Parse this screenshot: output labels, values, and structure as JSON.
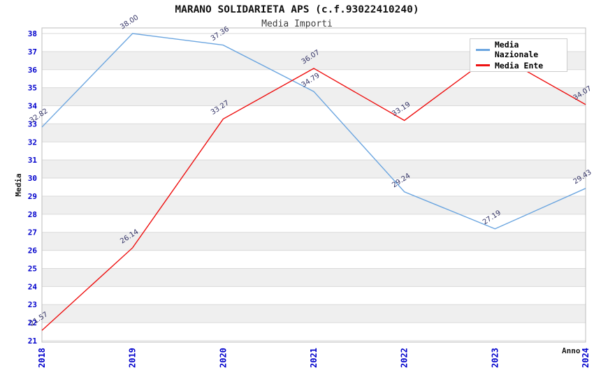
{
  "title": "MARANO SOLIDARIETA APS (c.f.93022410240)",
  "subtitle": "Media Importi",
  "legend": {
    "items": [
      {
        "label": "Media Nazionale",
        "color": "#6ca6e0"
      },
      {
        "label": "Media Ente",
        "color": "#ee1111"
      }
    ]
  },
  "chart_data": {
    "type": "line",
    "title": "MARANO SOLIDARIETA APS (c.f.93022410240)",
    "subtitle": "Media Importi",
    "x": [
      2018,
      2019,
      2020,
      2021,
      2022,
      2023,
      2024
    ],
    "xlabel": "Anno",
    "ylabel": "Media",
    "ylim": [
      21,
      38
    ],
    "ytick_step": 1,
    "grid": true,
    "legend_position": "top-right",
    "band_colors": [
      "#ffffff",
      "#efefef"
    ],
    "gridline_color": "#dadada",
    "frame_color": "#bdbdbd",
    "tick_color": "#0000cc",
    "data_label_color": "#333366",
    "series": [
      {
        "name": "Media Nazionale",
        "color": "#6ca6e0",
        "values": [
          32.82,
          38.0,
          37.36,
          34.79,
          29.24,
          27.19,
          29.43
        ],
        "labels": [
          "32.82",
          "38.00",
          "37.36",
          "34.79",
          "29.24",
          "27.19",
          "29.43"
        ]
      },
      {
        "name": "Media Ente",
        "color": "#ee1111",
        "values": [
          21.57,
          26.14,
          33.27,
          36.07,
          33.19,
          36.9,
          34.07
        ],
        "labels": [
          "21.57",
          "26.14",
          "33.27",
          "36.07",
          "33.19",
          "",
          "34.07"
        ]
      }
    ]
  }
}
